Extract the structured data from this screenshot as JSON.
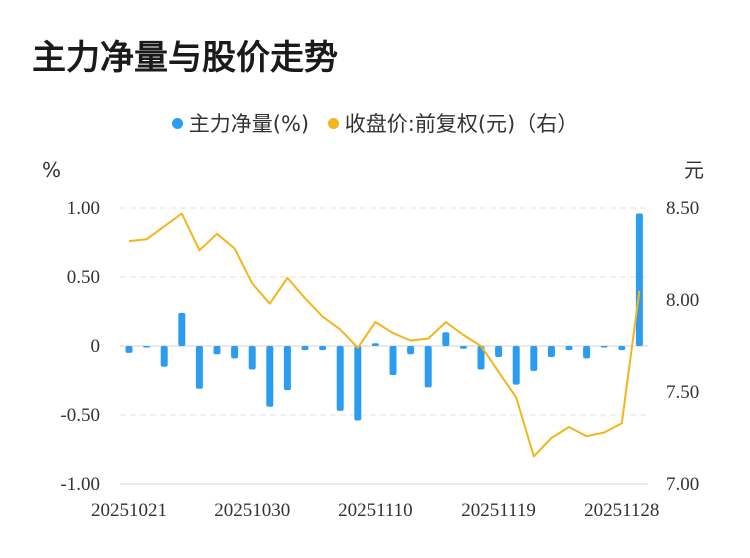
{
  "chart_data": {
    "type": "bar+line",
    "title": "主力净量与股价走势",
    "left_unit": "%",
    "right_unit": "元",
    "left_ylim": [
      -1.0,
      1.0
    ],
    "right_ylim": [
      7.0,
      8.5
    ],
    "left_ticks": [
      "1.00",
      "0.50",
      "0",
      "-0.50",
      "-1.00"
    ],
    "left_tick_values": [
      1.0,
      0.5,
      0,
      -0.5,
      -1.0
    ],
    "right_ticks": [
      "8.50",
      "8.00",
      "7.50",
      "7.00"
    ],
    "right_tick_values": [
      8.5,
      8.0,
      7.5,
      7.0
    ],
    "x_tick_labels": [
      "20251021",
      "20251030",
      "20251110",
      "20251119",
      "20251128"
    ],
    "x_tick_indices": [
      0,
      7,
      14,
      21,
      28
    ],
    "grid": true,
    "legend_position": "top",
    "series": [
      {
        "name": "主力净量(%)",
        "type": "bar",
        "axis": "left",
        "color": "#2b9cf0",
        "values": [
          -0.05,
          -0.01,
          -0.15,
          0.24,
          -0.31,
          -0.06,
          -0.09,
          -0.17,
          -0.44,
          -0.32,
          -0.03,
          -0.03,
          -0.47,
          -0.54,
          0.02,
          -0.21,
          -0.06,
          -0.3,
          0.1,
          -0.02,
          -0.17,
          -0.08,
          -0.28,
          -0.18,
          -0.08,
          -0.03,
          -0.09,
          -0.01,
          -0.03,
          0.96
        ]
      },
      {
        "name": "收盘价:前复权(元)（右）",
        "type": "line",
        "axis": "right",
        "color": "#f3b51c",
        "values": [
          8.32,
          8.33,
          8.4,
          8.47,
          8.27,
          8.36,
          8.28,
          8.09,
          7.98,
          8.12,
          8.01,
          7.91,
          7.84,
          7.74,
          7.88,
          7.82,
          7.78,
          7.79,
          7.88,
          7.81,
          7.75,
          7.61,
          7.47,
          7.15,
          7.25,
          7.31,
          7.26,
          7.28,
          7.33,
          8.05
        ]
      }
    ]
  }
}
